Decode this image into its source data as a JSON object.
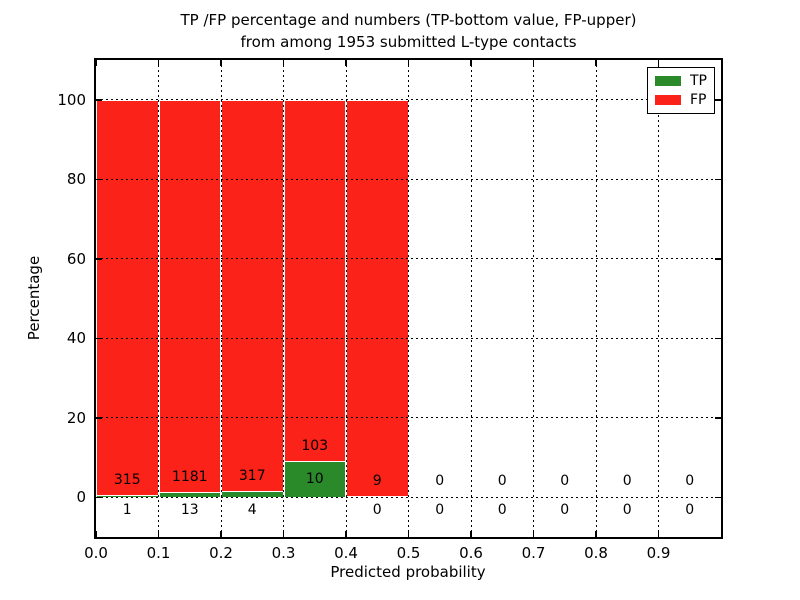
{
  "chart_data": {
    "type": "bar",
    "stacked": true,
    "title_lines": [
      "TP /FP percentage and numbers (TP-bottom value, FP-upper)",
      "from among 1953 submitted L-type contacts"
    ],
    "xlabel": "Predicted probability",
    "ylabel": "Percentage",
    "xlim": [
      0.0,
      1.0
    ],
    "ylim": [
      -10,
      110
    ],
    "bin_width": 0.1,
    "x_tick_values": [
      0.0,
      0.1,
      0.2,
      0.3,
      0.4,
      0.5,
      0.6,
      0.7,
      0.8,
      0.9
    ],
    "x_tick_labels": [
      "0.0",
      "0.1",
      "0.2",
      "0.3",
      "0.4",
      "0.5",
      "0.6",
      "0.7",
      "0.8",
      "0.9"
    ],
    "y_tick_values": [
      0,
      20,
      40,
      60,
      80,
      100
    ],
    "y_tick_labels": [
      "0",
      "20",
      "40",
      "60",
      "80",
      "100"
    ],
    "grid": "dotted, drawn above bars",
    "total_contacts": 1953,
    "bins": [
      {
        "range": "0.0-0.1",
        "tp": 1,
        "fp": 315,
        "tp_pct": 0.32,
        "fp_pct": 99.68
      },
      {
        "range": "0.1-0.2",
        "tp": 13,
        "fp": 1181,
        "tp_pct": 1.09,
        "fp_pct": 98.91
      },
      {
        "range": "0.2-0.3",
        "tp": 4,
        "fp": 317,
        "tp_pct": 1.25,
        "fp_pct": 98.75
      },
      {
        "range": "0.3-0.4",
        "tp": 10,
        "fp": 103,
        "tp_pct": 8.85,
        "fp_pct": 91.15
      },
      {
        "range": "0.4-0.5",
        "tp": 0,
        "fp": 9,
        "tp_pct": 0.0,
        "fp_pct": 100.0
      },
      {
        "range": "0.5-0.6",
        "tp": 0,
        "fp": 0,
        "tp_pct": 0.0,
        "fp_pct": 0.0
      },
      {
        "range": "0.6-0.7",
        "tp": 0,
        "fp": 0,
        "tp_pct": 0.0,
        "fp_pct": 0.0
      },
      {
        "range": "0.7-0.8",
        "tp": 0,
        "fp": 0,
        "tp_pct": 0.0,
        "fp_pct": 0.0
      },
      {
        "range": "0.8-0.9",
        "tp": 0,
        "fp": 0,
        "tp_pct": 0.0,
        "fp_pct": 0.0
      },
      {
        "range": "0.9-1.0",
        "tp": 0,
        "fp": 0,
        "tp_pct": 0.0,
        "fp_pct": 0.0
      }
    ],
    "legend": {
      "position": "upper right",
      "entries": [
        {
          "label": "TP",
          "color": "#2a8a2a"
        },
        {
          "label": "FP",
          "color": "#fb221a"
        }
      ]
    },
    "colors": {
      "tp": "#2a8a2a",
      "fp": "#fb221a",
      "bar_edge": "#ffffff",
      "grid": "#000000",
      "axis": "#000000",
      "background": "#ffffff"
    }
  }
}
